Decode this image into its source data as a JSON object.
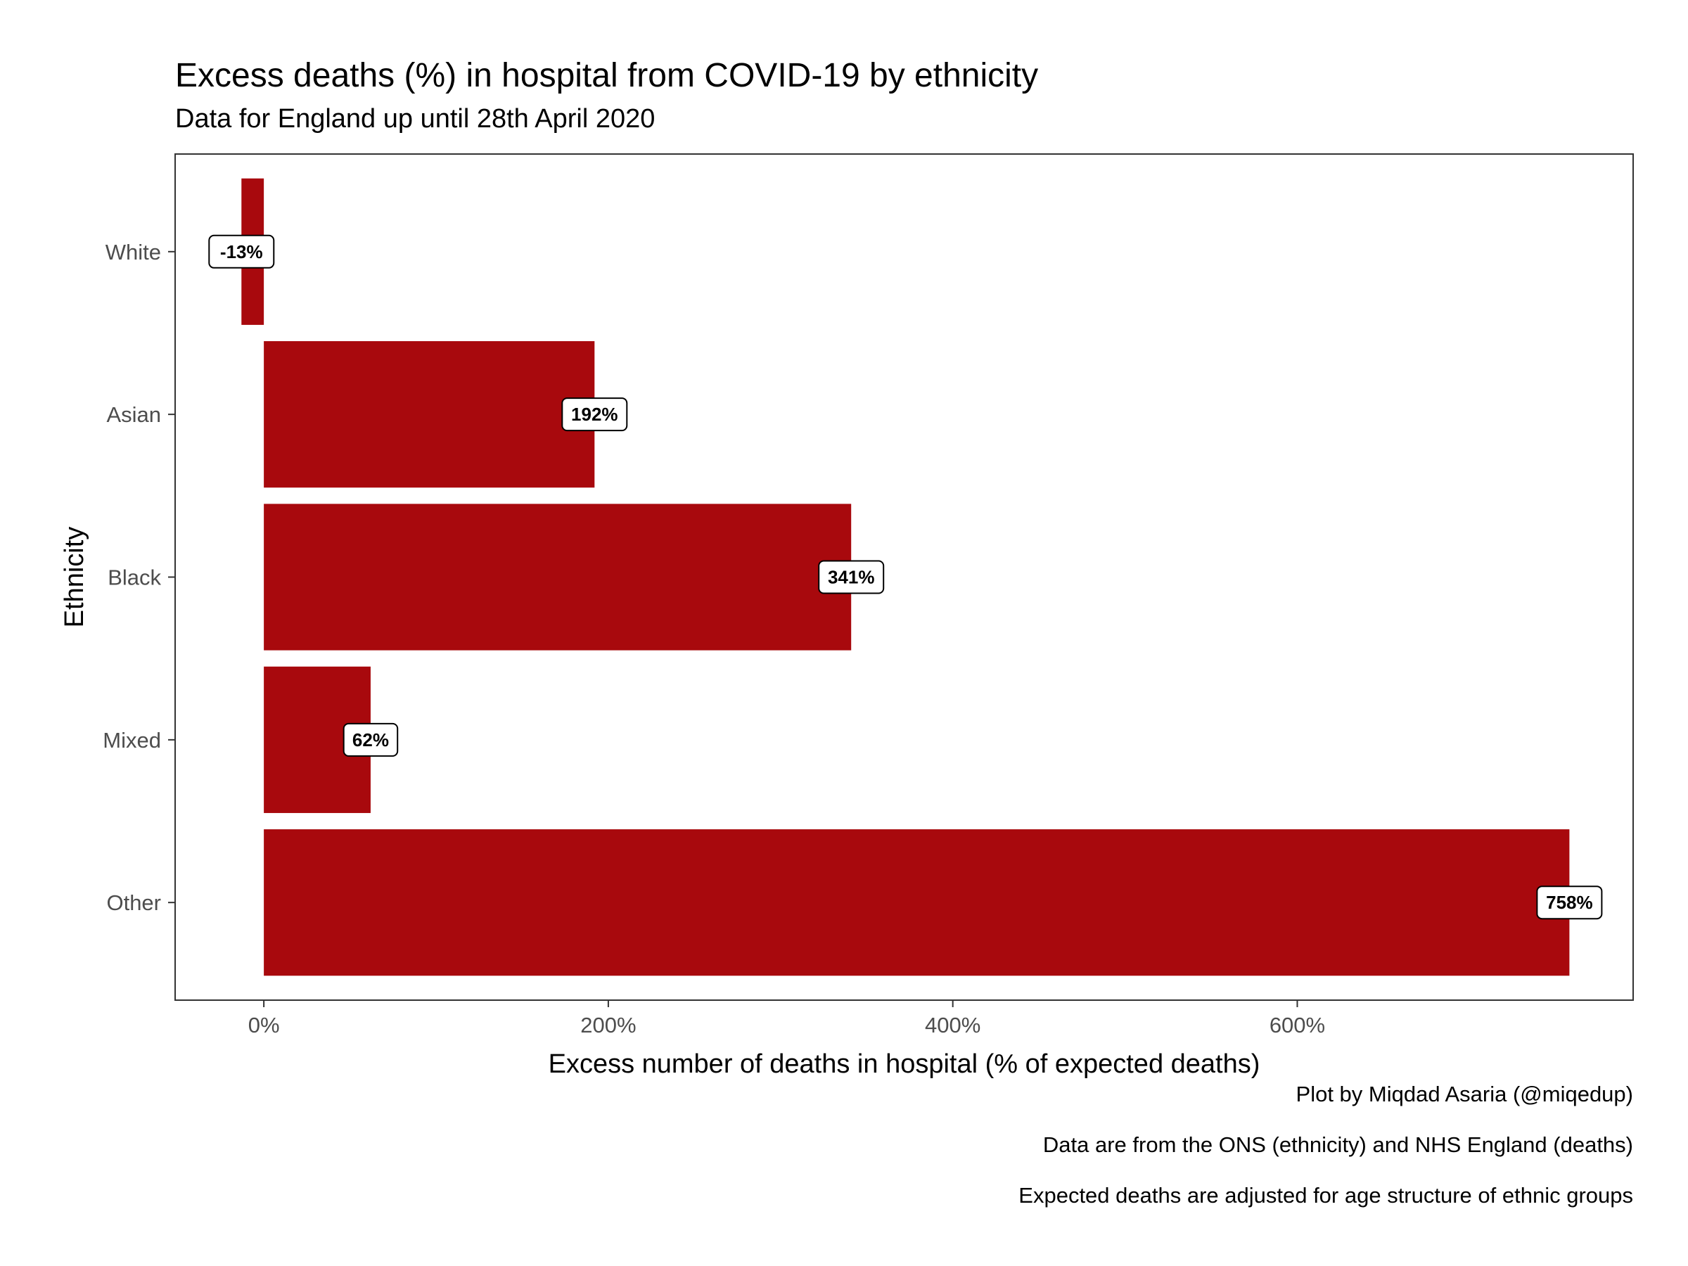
{
  "chart_data": {
    "type": "bar",
    "orientation": "horizontal",
    "title": "Excess deaths (%) in hospital from COVID-19 by ethnicity",
    "subtitle": "Data for England up until 28th April 2020",
    "xlabel": "Excess number of deaths in hospital (% of expected deaths)",
    "ylabel": "Ethnicity",
    "categories": [
      "White",
      "Asian",
      "Black",
      "Mixed",
      "Other"
    ],
    "values": [
      -13,
      192,
      341,
      62,
      758
    ],
    "data_labels": [
      "-13%",
      "192%",
      "341%",
      "62%",
      "758%"
    ],
    "xlim": [
      -51.5,
      795
    ],
    "xticks": [
      0,
      200,
      400,
      600
    ],
    "xtick_labels": [
      "0%",
      "200%",
      "400%",
      "600%"
    ],
    "grid": false,
    "bar_color": "#A8090D",
    "captions": [
      "Plot by Miqdad Asaria (@miqedup)",
      "Data are from the ONS (ethnicity) and NHS England (deaths) ",
      "Expected deaths are adjusted for age structure of ethnic groups"
    ]
  }
}
